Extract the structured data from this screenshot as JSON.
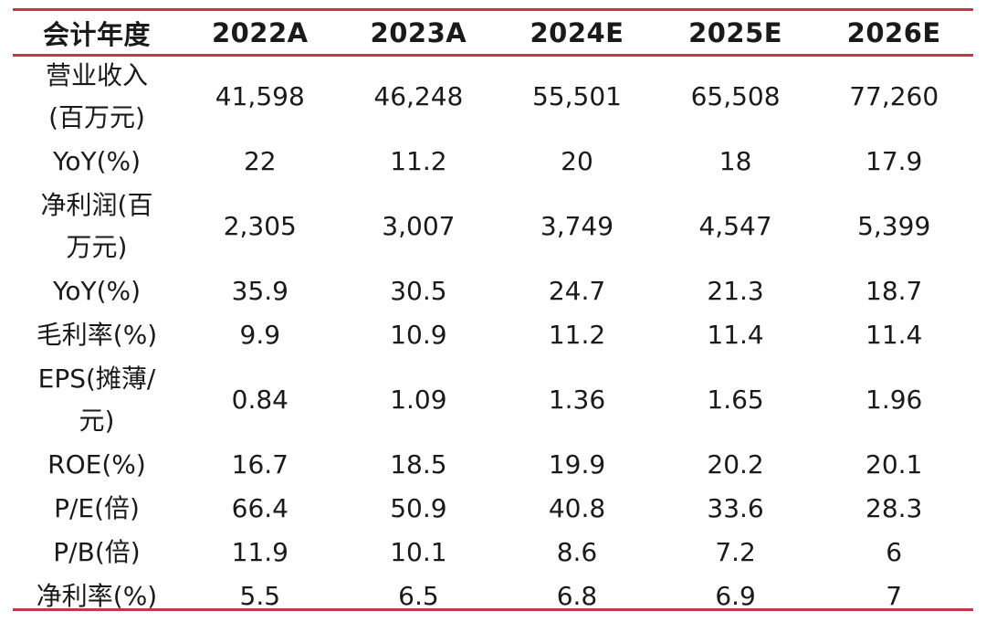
{
  "colors": {
    "rule": "#c0394b",
    "text": "#1a1a1a"
  },
  "table": {
    "header": [
      "会计年度",
      "2022A",
      "2023A",
      "2024E",
      "2025E",
      "2026E"
    ],
    "rows": [
      {
        "label": "营业收入\n(百万元)",
        "values": [
          "41,598",
          "46,248",
          "55,501",
          "65,508",
          "77,260"
        ],
        "tall": true
      },
      {
        "label": "YoY(%)",
        "values": [
          "22",
          "11.2",
          "20",
          "18",
          "17.9"
        ],
        "tall": false
      },
      {
        "label": "净利润(百\n万元)",
        "values": [
          "2,305",
          "3,007",
          "3,749",
          "4,547",
          "5,399"
        ],
        "tall": true
      },
      {
        "label": "YoY(%)",
        "values": [
          "35.9",
          "30.5",
          "24.7",
          "21.3",
          "18.7"
        ],
        "tall": false
      },
      {
        "label": "毛利率(%)",
        "values": [
          "9.9",
          "10.9",
          "11.2",
          "11.4",
          "11.4"
        ],
        "tall": false
      },
      {
        "label": "EPS(摊薄/\n元)",
        "values": [
          "0.84",
          "1.09",
          "1.36",
          "1.65",
          "1.96"
        ],
        "tall": true
      },
      {
        "label": "ROE(%)",
        "values": [
          "16.7",
          "18.5",
          "19.9",
          "20.2",
          "20.1"
        ],
        "tall": false
      },
      {
        "label": "P/E(倍)",
        "values": [
          "66.4",
          "50.9",
          "40.8",
          "33.6",
          "28.3"
        ],
        "tall": false
      },
      {
        "label": "P/B(倍)",
        "values": [
          "11.9",
          "10.1",
          "8.6",
          "7.2",
          "6"
        ],
        "tall": false
      },
      {
        "label": "净利率(%)",
        "values": [
          "5.5",
          "6.5",
          "6.8",
          "6.9",
          "7"
        ],
        "tall": false
      }
    ]
  }
}
